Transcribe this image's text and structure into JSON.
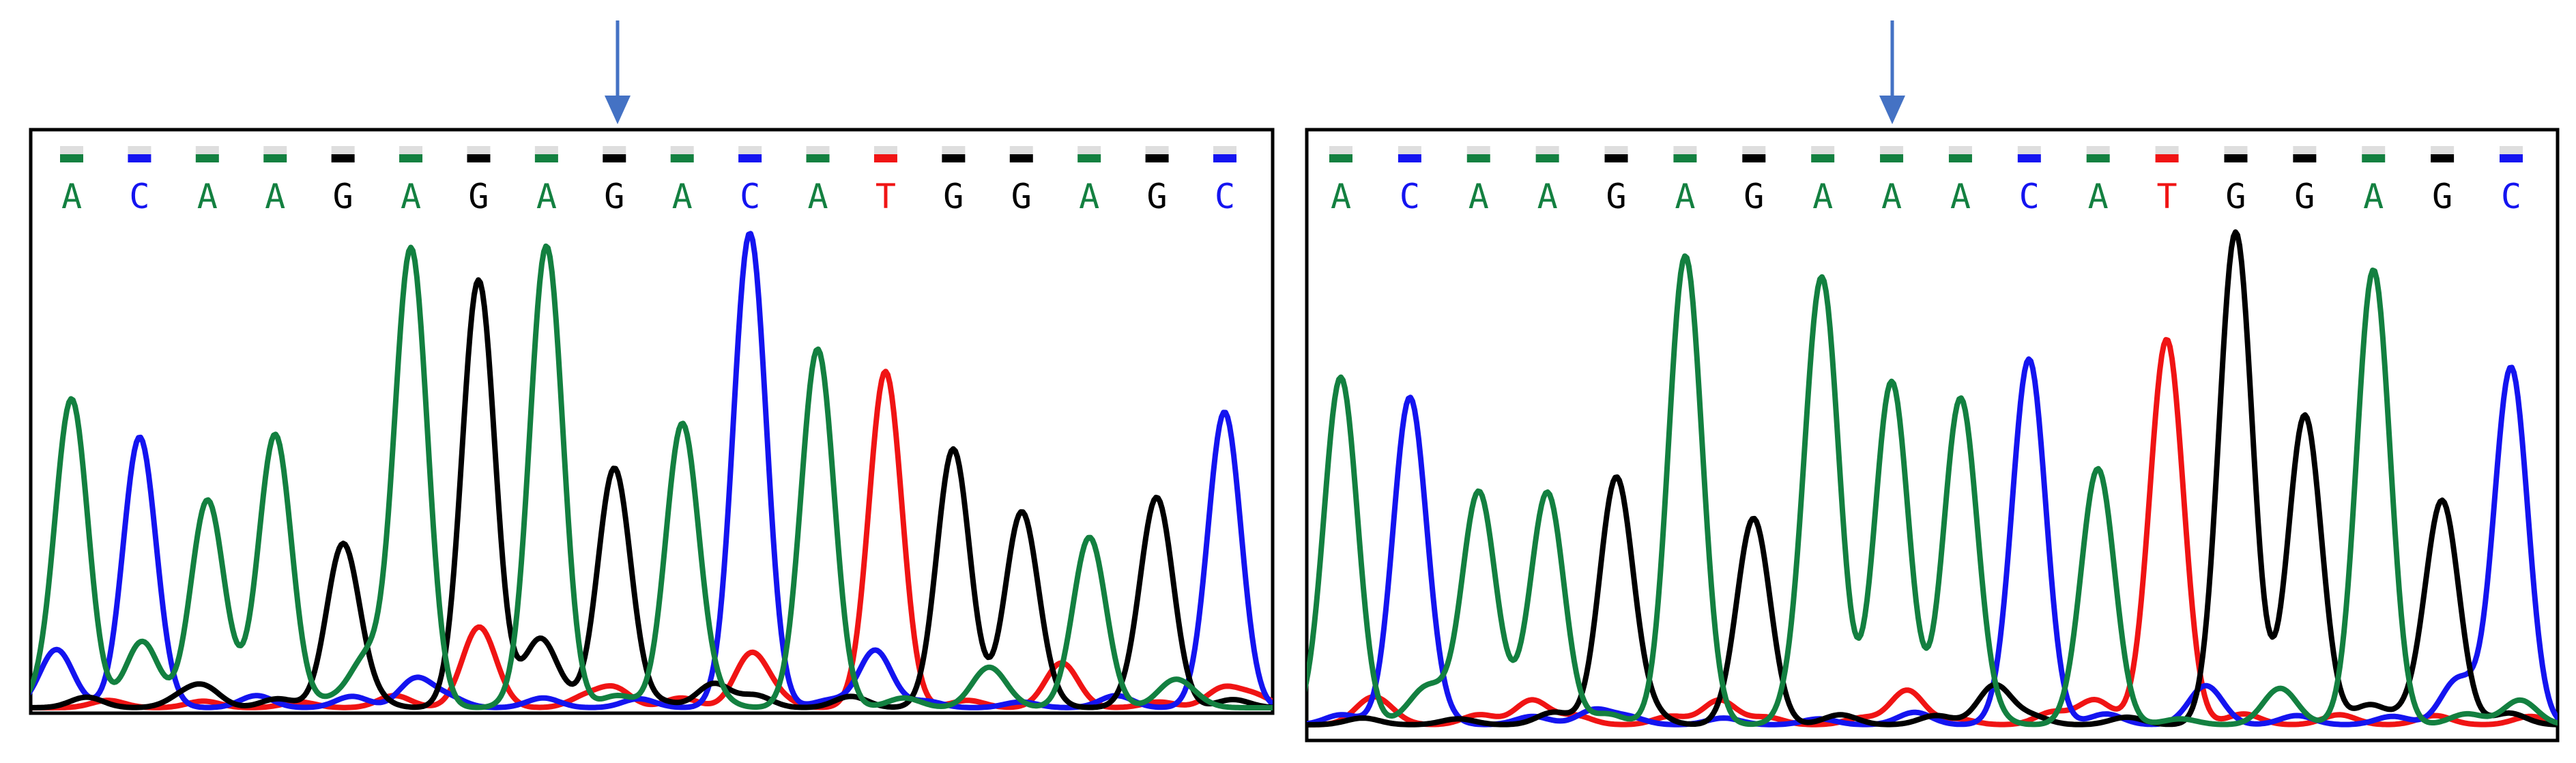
{
  "colors": {
    "A": "#138040",
    "C": "#1414f0",
    "G": "#000000",
    "T": "#f01414",
    "frame": "#000000",
    "arrow": "#4472c4",
    "qv_bar": "#dedede"
  },
  "panels": [
    {
      "id": "left",
      "sequence": [
        "A",
        "C",
        "A",
        "A",
        "G",
        "A",
        "G",
        "A",
        "G",
        "A",
        "C",
        "A",
        "T",
        "G",
        "G",
        "A",
        "G",
        "C"
      ],
      "arrow_index": 8
    },
    {
      "id": "right",
      "sequence": [
        "A",
        "C",
        "A",
        "A",
        "G",
        "A",
        "G",
        "A",
        "A",
        "A",
        "C",
        "A",
        "T",
        "G",
        "G",
        "A",
        "G",
        "C"
      ],
      "arrow_index": 8
    }
  ]
}
